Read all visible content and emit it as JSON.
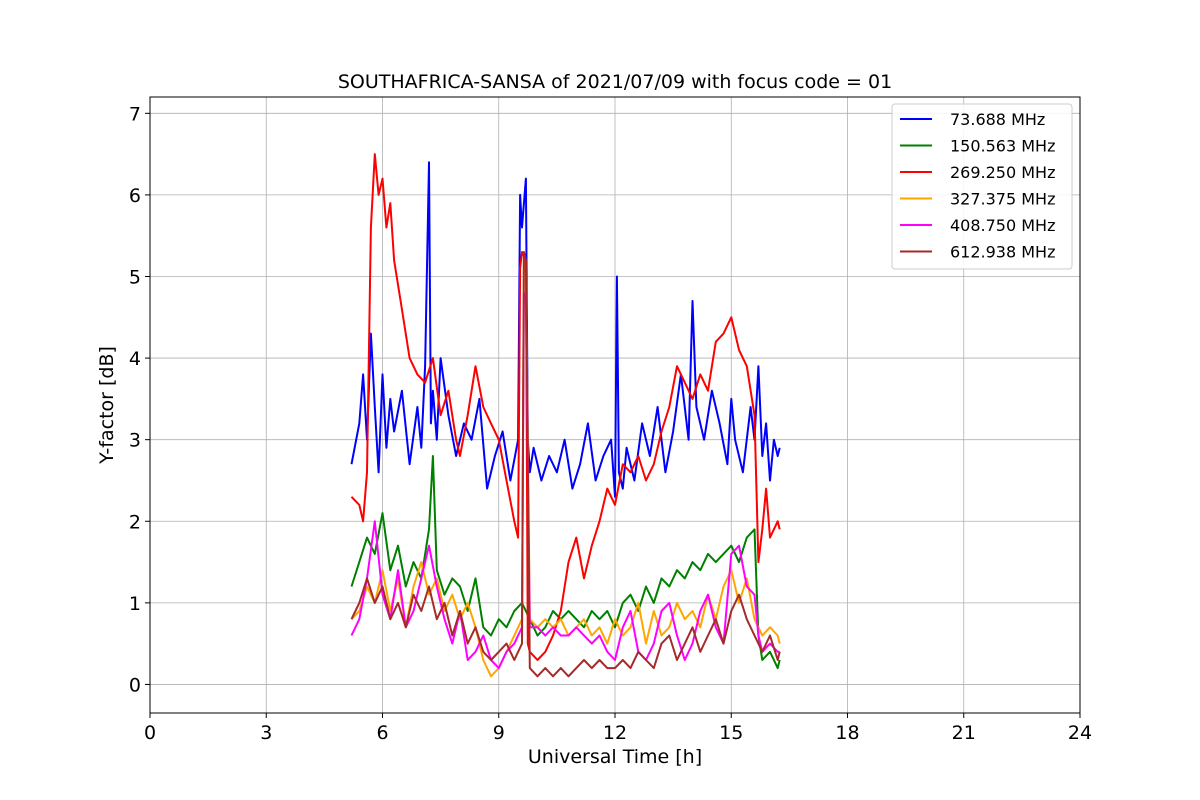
{
  "chart_data": {
    "type": "line",
    "title": "SOUTHAFRICA-SANSA of 2021/07/09 with focus code = 01",
    "xlabel": "Universal Time [h]",
    "ylabel": "Y-factor [dB]",
    "xlim": [
      0,
      24
    ],
    "ylim": [
      -0.35,
      7.2
    ],
    "xticks": [
      0,
      3,
      6,
      9,
      12,
      15,
      18,
      21,
      24
    ],
    "yticks": [
      0,
      1,
      2,
      3,
      4,
      5,
      6,
      7
    ],
    "grid": true,
    "legend_position": "top-right",
    "series": [
      {
        "name": "  73.688 MHz",
        "color": "#0000ff",
        "x": [
          5.2,
          5.4,
          5.5,
          5.6,
          5.7,
          5.8,
          5.9,
          6.0,
          6.1,
          6.2,
          6.3,
          6.5,
          6.7,
          6.9,
          7.0,
          7.1,
          7.2,
          7.25,
          7.3,
          7.4,
          7.5,
          7.7,
          7.9,
          8.1,
          8.3,
          8.5,
          8.7,
          8.9,
          9.1,
          9.3,
          9.5,
          9.55,
          9.6,
          9.7,
          9.75,
          9.8,
          9.9,
          10.1,
          10.3,
          10.5,
          10.7,
          10.9,
          11.1,
          11.3,
          11.5,
          11.7,
          11.9,
          12.0,
          12.05,
          12.1,
          12.2,
          12.3,
          12.5,
          12.7,
          12.9,
          13.1,
          13.3,
          13.5,
          13.7,
          13.9,
          14.0,
          14.1,
          14.3,
          14.5,
          14.7,
          14.9,
          15.0,
          15.1,
          15.3,
          15.5,
          15.6,
          15.7,
          15.8,
          15.9,
          16.0,
          16.1,
          16.2,
          16.25
        ],
        "y": [
          2.7,
          3.2,
          3.8,
          3.0,
          4.3,
          3.4,
          2.6,
          3.8,
          2.9,
          3.5,
          3.1,
          3.6,
          2.7,
          3.4,
          2.9,
          3.9,
          6.4,
          3.2,
          3.6,
          3.0,
          4.0,
          3.3,
          2.8,
          3.2,
          3.0,
          3.5,
          2.4,
          2.8,
          3.1,
          2.5,
          3.0,
          6.0,
          5.6,
          6.2,
          3.0,
          2.6,
          2.9,
          2.5,
          2.8,
          2.6,
          3.0,
          2.4,
          2.7,
          3.2,
          2.5,
          2.8,
          3.0,
          2.3,
          5.0,
          2.6,
          2.4,
          2.9,
          2.5,
          3.2,
          2.8,
          3.4,
          2.6,
          3.1,
          3.8,
          3.0,
          4.7,
          3.4,
          3.0,
          3.6,
          3.2,
          2.7,
          3.5,
          3.0,
          2.6,
          3.4,
          3.0,
          3.9,
          2.8,
          3.2,
          2.5,
          3.0,
          2.8,
          2.9
        ]
      },
      {
        "name": "150.563 MHz",
        "color": "#008000",
        "x": [
          5.2,
          5.4,
          5.6,
          5.8,
          6.0,
          6.2,
          6.4,
          6.6,
          6.8,
          7.0,
          7.2,
          7.3,
          7.4,
          7.6,
          7.8,
          8.0,
          8.2,
          8.4,
          8.6,
          8.8,
          9.0,
          9.2,
          9.4,
          9.6,
          9.8,
          10.0,
          10.2,
          10.4,
          10.6,
          10.8,
          11.0,
          11.2,
          11.4,
          11.6,
          11.8,
          12.0,
          12.2,
          12.4,
          12.6,
          12.8,
          13.0,
          13.2,
          13.4,
          13.6,
          13.8,
          14.0,
          14.2,
          14.4,
          14.6,
          14.8,
          15.0,
          15.2,
          15.4,
          15.6,
          15.7,
          15.8,
          16.0,
          16.2,
          16.25
        ],
        "y": [
          1.2,
          1.5,
          1.8,
          1.6,
          2.1,
          1.4,
          1.7,
          1.2,
          1.5,
          1.3,
          1.9,
          2.8,
          1.4,
          1.1,
          1.3,
          1.2,
          0.9,
          1.3,
          0.7,
          0.6,
          0.8,
          0.7,
          0.9,
          1.0,
          0.8,
          0.6,
          0.7,
          0.9,
          0.8,
          0.9,
          0.8,
          0.7,
          0.9,
          0.8,
          0.9,
          0.7,
          1.0,
          1.1,
          0.9,
          1.2,
          1.0,
          1.3,
          1.2,
          1.4,
          1.3,
          1.5,
          1.4,
          1.6,
          1.5,
          1.6,
          1.7,
          1.5,
          1.8,
          1.9,
          0.6,
          0.3,
          0.4,
          0.2,
          0.3
        ]
      },
      {
        "name": "269.250 MHz",
        "color": "#ff0000",
        "x": [
          5.2,
          5.4,
          5.5,
          5.6,
          5.7,
          5.8,
          5.9,
          6.0,
          6.1,
          6.2,
          6.3,
          6.4,
          6.5,
          6.7,
          6.9,
          7.1,
          7.3,
          7.5,
          7.7,
          7.9,
          8.0,
          8.2,
          8.4,
          8.6,
          8.8,
          9.0,
          9.2,
          9.4,
          9.5,
          9.55,
          9.6,
          9.7,
          9.75,
          9.8,
          10.0,
          10.2,
          10.4,
          10.6,
          10.8,
          11.0,
          11.2,
          11.4,
          11.6,
          11.8,
          12.0,
          12.2,
          12.4,
          12.6,
          12.8,
          13.0,
          13.2,
          13.4,
          13.6,
          13.8,
          14.0,
          14.2,
          14.4,
          14.6,
          14.8,
          15.0,
          15.2,
          15.4,
          15.6,
          15.7,
          15.8,
          15.9,
          16.0,
          16.2,
          16.25
        ],
        "y": [
          2.3,
          2.2,
          2.0,
          2.6,
          5.6,
          6.5,
          6.0,
          6.2,
          5.6,
          5.9,
          5.2,
          4.9,
          4.6,
          4.0,
          3.8,
          3.7,
          4.0,
          3.3,
          3.6,
          3.0,
          2.8,
          3.3,
          3.9,
          3.4,
          3.2,
          3.0,
          2.5,
          2.0,
          1.8,
          5.1,
          5.3,
          5.2,
          0.5,
          0.4,
          0.3,
          0.4,
          0.6,
          0.9,
          1.5,
          1.8,
          1.3,
          1.7,
          2.0,
          2.4,
          2.2,
          2.7,
          2.6,
          2.8,
          2.5,
          2.7,
          3.1,
          3.4,
          3.9,
          3.7,
          3.5,
          3.8,
          3.6,
          4.2,
          4.3,
          4.5,
          4.1,
          3.9,
          3.3,
          1.5,
          1.9,
          2.4,
          1.8,
          2.0,
          1.9
        ]
      },
      {
        "name": "327.375 MHz",
        "color": "#ffa500",
        "x": [
          5.2,
          5.4,
          5.6,
          5.8,
          6.0,
          6.2,
          6.4,
          6.6,
          6.8,
          7.0,
          7.2,
          7.4,
          7.6,
          7.8,
          8.0,
          8.2,
          8.4,
          8.6,
          8.8,
          9.0,
          9.2,
          9.4,
          9.6,
          9.65,
          9.7,
          9.8,
          10.0,
          10.2,
          10.4,
          10.6,
          10.8,
          11.0,
          11.2,
          11.4,
          11.6,
          11.8,
          12.0,
          12.2,
          12.4,
          12.6,
          12.8,
          13.0,
          13.2,
          13.4,
          13.6,
          13.8,
          14.0,
          14.2,
          14.4,
          14.6,
          14.8,
          15.0,
          15.2,
          15.4,
          15.6,
          15.7,
          15.8,
          16.0,
          16.2,
          16.25
        ],
        "y": [
          0.8,
          0.9,
          1.2,
          1.0,
          1.4,
          0.9,
          1.3,
          0.7,
          1.2,
          1.5,
          1.1,
          1.3,
          0.9,
          1.1,
          0.8,
          1.0,
          0.7,
          0.3,
          0.1,
          0.2,
          0.4,
          0.6,
          0.8,
          5.2,
          5.1,
          0.8,
          0.7,
          0.8,
          0.7,
          0.8,
          0.6,
          0.7,
          0.8,
          0.6,
          0.7,
          0.5,
          0.8,
          0.6,
          0.7,
          1.0,
          0.5,
          0.9,
          0.6,
          0.7,
          1.0,
          0.8,
          0.9,
          0.7,
          1.1,
          0.8,
          1.2,
          1.4,
          1.0,
          1.3,
          0.8,
          0.7,
          0.6,
          0.7,
          0.6,
          0.5
        ]
      },
      {
        "name": "408.750 MHz",
        "color": "#ff00ff",
        "x": [
          5.2,
          5.4,
          5.6,
          5.8,
          6.0,
          6.2,
          6.4,
          6.6,
          6.8,
          7.0,
          7.2,
          7.4,
          7.6,
          7.8,
          8.0,
          8.2,
          8.4,
          8.6,
          8.8,
          9.0,
          9.2,
          9.4,
          9.6,
          9.65,
          9.7,
          9.8,
          10.0,
          10.2,
          10.4,
          10.6,
          10.8,
          11.0,
          11.2,
          11.4,
          11.6,
          11.8,
          12.0,
          12.2,
          12.4,
          12.6,
          12.8,
          13.0,
          13.2,
          13.4,
          13.6,
          13.8,
          14.0,
          14.2,
          14.4,
          14.6,
          14.8,
          15.0,
          15.2,
          15.4,
          15.6,
          15.7,
          15.8,
          16.0,
          16.2,
          16.25
        ],
        "y": [
          0.6,
          0.8,
          1.3,
          2.0,
          1.1,
          0.8,
          1.4,
          0.7,
          0.9,
          1.3,
          1.7,
          1.2,
          0.8,
          0.5,
          0.9,
          0.3,
          0.4,
          0.6,
          0.3,
          0.2,
          0.4,
          0.5,
          0.7,
          4.8,
          4.7,
          0.7,
          0.7,
          0.6,
          0.7,
          0.6,
          0.6,
          0.7,
          0.6,
          0.5,
          0.6,
          0.4,
          0.3,
          0.7,
          0.9,
          0.4,
          0.3,
          0.5,
          0.9,
          1.0,
          0.6,
          0.3,
          0.5,
          0.9,
          1.1,
          0.7,
          0.5,
          1.6,
          1.7,
          1.2,
          1.1,
          0.6,
          0.4,
          0.5,
          0.4,
          0.4
        ]
      },
      {
        "name": "612.938 MHz",
        "color": "#a52a2a",
        "x": [
          5.2,
          5.4,
          5.6,
          5.8,
          6.0,
          6.2,
          6.4,
          6.6,
          6.8,
          7.0,
          7.2,
          7.4,
          7.6,
          7.8,
          8.0,
          8.2,
          8.4,
          8.6,
          8.8,
          9.0,
          9.2,
          9.4,
          9.6,
          9.65,
          9.7,
          9.8,
          10.0,
          10.2,
          10.4,
          10.6,
          10.8,
          11.0,
          11.2,
          11.4,
          11.6,
          11.8,
          12.0,
          12.2,
          12.4,
          12.6,
          12.8,
          13.0,
          13.2,
          13.4,
          13.6,
          13.8,
          14.0,
          14.2,
          14.4,
          14.6,
          14.8,
          15.0,
          15.2,
          15.4,
          15.6,
          15.7,
          15.8,
          16.0,
          16.2,
          16.25
        ],
        "y": [
          0.8,
          1.0,
          1.3,
          1.0,
          1.2,
          0.8,
          1.0,
          0.7,
          1.1,
          0.9,
          1.2,
          0.8,
          1.0,
          0.6,
          0.9,
          0.5,
          0.7,
          0.4,
          0.3,
          0.4,
          0.5,
          0.3,
          0.5,
          5.3,
          5.2,
          0.2,
          0.1,
          0.2,
          0.1,
          0.2,
          0.1,
          0.2,
          0.3,
          0.2,
          0.3,
          0.2,
          0.2,
          0.3,
          0.2,
          0.4,
          0.3,
          0.2,
          0.5,
          0.6,
          0.3,
          0.5,
          0.7,
          0.4,
          0.6,
          0.8,
          0.5,
          0.9,
          1.1,
          0.8,
          0.6,
          0.5,
          0.4,
          0.6,
          0.3,
          0.4
        ]
      }
    ]
  }
}
